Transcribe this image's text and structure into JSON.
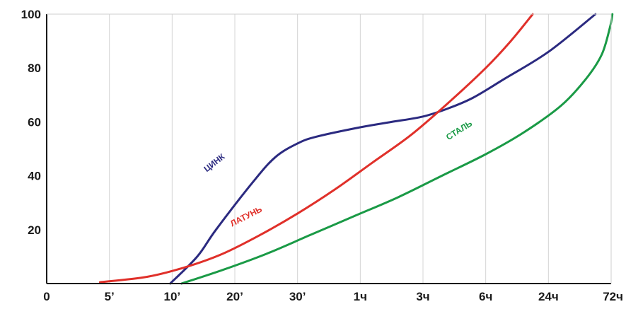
{
  "chart_data": {
    "type": "line",
    "title": "",
    "xlabel": "",
    "ylabel": "",
    "x_categories": [
      "0",
      "5’",
      "10’",
      "20’",
      "30’",
      "1ч",
      "3ч",
      "6ч",
      "24ч",
      "72ч"
    ],
    "y_ticks": [
      "20",
      "40",
      "60",
      "80",
      "100"
    ],
    "ylim": [
      0,
      100
    ],
    "grid": {
      "vertical": true,
      "horizontal": false
    },
    "series": [
      {
        "name": "ЦИНК",
        "color": "#2b2a80",
        "points": [
          [
            1.97,
            0
          ],
          [
            2.4,
            10
          ],
          [
            2.7,
            20
          ],
          [
            3.3,
            38
          ],
          [
            3.65,
            47
          ],
          [
            4.0,
            52
          ],
          [
            4.3,
            54.5
          ],
          [
            5.0,
            58
          ],
          [
            5.5,
            60
          ],
          [
            6.0,
            62
          ],
          [
            6.4,
            65
          ],
          [
            6.8,
            69
          ],
          [
            7.3,
            76
          ],
          [
            8.0,
            86
          ],
          [
            8.75,
            100
          ]
        ]
      },
      {
        "name": "ЛАТУНЬ",
        "color": "#e0302a",
        "points": [
          [
            0.85,
            0.5
          ],
          [
            1.6,
            2.5
          ],
          [
            2.2,
            6
          ],
          [
            2.8,
            11
          ],
          [
            3.4,
            18
          ],
          [
            4.0,
            26
          ],
          [
            4.6,
            35
          ],
          [
            5.2,
            45
          ],
          [
            5.8,
            55
          ],
          [
            6.4,
            67
          ],
          [
            7.0,
            80
          ],
          [
            7.4,
            90
          ],
          [
            7.75,
            100
          ]
        ]
      },
      {
        "name": "СТАЛЬ",
        "color": "#1a9a46",
        "points": [
          [
            2.15,
            0
          ],
          [
            2.8,
            5
          ],
          [
            3.5,
            11
          ],
          [
            4.2,
            18
          ],
          [
            4.9,
            25
          ],
          [
            5.6,
            32
          ],
          [
            6.3,
            40
          ],
          [
            7.0,
            48
          ],
          [
            7.6,
            56
          ],
          [
            8.2,
            66
          ],
          [
            8.6,
            76
          ],
          [
            8.85,
            85
          ],
          [
            8.98,
            95
          ],
          [
            9.02,
            100
          ]
        ]
      }
    ],
    "series_labels": [
      {
        "series": 0,
        "text": "ЦИНК",
        "at": [
          2.7,
          44
        ],
        "angle": -38
      },
      {
        "series": 1,
        "text": "ЛАТУНЬ",
        "at": [
          3.2,
          24
        ],
        "angle": -27
      },
      {
        "series": 2,
        "text": "СТАЛЬ",
        "at": [
          6.6,
          56
        ],
        "angle": -32
      }
    ]
  }
}
